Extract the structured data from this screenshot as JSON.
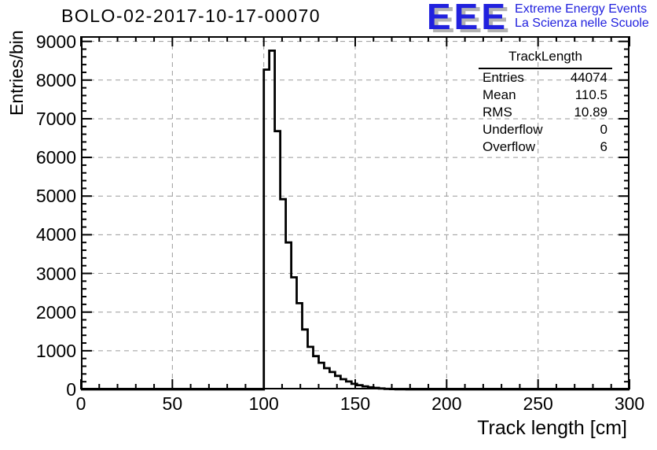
{
  "header": {
    "title": "BOLO-02-2017-10-17-00070",
    "logo": {
      "acronym": "EEE",
      "tagline_line1": "Extreme Energy Events",
      "tagline_line2": "La Scienza nelle Scuole",
      "color": "#2121de",
      "shadow_color": "#b3b3b3"
    }
  },
  "stats_box": {
    "title": "TrackLength",
    "rows": [
      {
        "label": "Entries",
        "value": "44074"
      },
      {
        "label": "Mean",
        "value": "110.5"
      },
      {
        "label": "RMS",
        "value": "10.89"
      },
      {
        "label": "Underflow",
        "value": "0"
      },
      {
        "label": "Overflow",
        "value": "6"
      }
    ]
  },
  "chart_data": {
    "type": "bar",
    "subtype": "step-histogram",
    "title": "BOLO-02-2017-10-17-00070",
    "xlabel": "Track length [cm]",
    "ylabel": "Entries/bin",
    "xlim": [
      0,
      300
    ],
    "ylim": [
      0,
      9135
    ],
    "x_major_ticks": [
      0,
      50,
      100,
      150,
      200,
      250,
      300
    ],
    "x_minor_step": 10,
    "y_major_ticks": [
      0,
      1000,
      2000,
      3000,
      4000,
      5000,
      6000,
      7000,
      8000,
      9000
    ],
    "y_minor_step": 200,
    "grid": true,
    "grid_style": "dashed",
    "grid_color": "#9a9a9a",
    "line_color": "#000000",
    "bins_start": 100,
    "bin_width": 3,
    "bin_values": [
      8270,
      8760,
      6680,
      4920,
      3800,
      2900,
      2230,
      1550,
      1100,
      860,
      690,
      550,
      450,
      350,
      265,
      205,
      145,
      110,
      80,
      55,
      40,
      25,
      15,
      8,
      4,
      2
    ],
    "baseline": 0
  }
}
